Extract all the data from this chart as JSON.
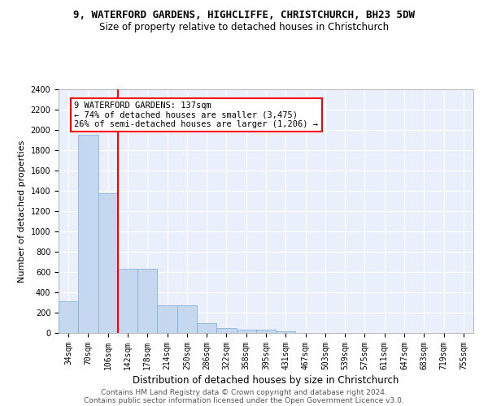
{
  "title1": "9, WATERFORD GARDENS, HIGHCLIFFE, CHRISTCHURCH, BH23 5DW",
  "title2": "Size of property relative to detached houses in Christchurch",
  "xlabel": "Distribution of detached houses by size in Christchurch",
  "ylabel": "Number of detached properties",
  "bar_color": "#c5d8f0",
  "bar_edge_color": "#7aaad4",
  "vline_color": "red",
  "annotation_line1": "9 WATERFORD GARDENS: 137sqm",
  "annotation_line2": "← 74% of detached houses are smaller (3,475)",
  "annotation_line3": "26% of semi-detached houses are larger (1,206) →",
  "categories": [
    "34sqm",
    "70sqm",
    "106sqm",
    "142sqm",
    "178sqm",
    "214sqm",
    "250sqm",
    "286sqm",
    "322sqm",
    "358sqm",
    "395sqm",
    "431sqm",
    "467sqm",
    "503sqm",
    "539sqm",
    "575sqm",
    "611sqm",
    "647sqm",
    "683sqm",
    "719sqm",
    "755sqm"
  ],
  "values": [
    315,
    1950,
    1380,
    630,
    630,
    270,
    270,
    95,
    47,
    32,
    32,
    20,
    0,
    0,
    0,
    0,
    0,
    0,
    0,
    0,
    0
  ],
  "ylim": [
    0,
    2400
  ],
  "yticks": [
    0,
    200,
    400,
    600,
    800,
    1000,
    1200,
    1400,
    1600,
    1800,
    2000,
    2200,
    2400
  ],
  "vline_pos": 2.5,
  "footer1": "Contains HM Land Registry data © Crown copyright and database right 2024.",
  "footer2": "Contains public sector information licensed under the Open Government Licence v3.0.",
  "bg_color": "#eaf0fb",
  "fig_bg_color": "#ffffff",
  "title1_fontsize": 9,
  "title2_fontsize": 8.5,
  "tick_fontsize": 7,
  "ylabel_fontsize": 8,
  "xlabel_fontsize": 8.5,
  "annotation_fontsize": 7.5,
  "footer_fontsize": 6.5
}
